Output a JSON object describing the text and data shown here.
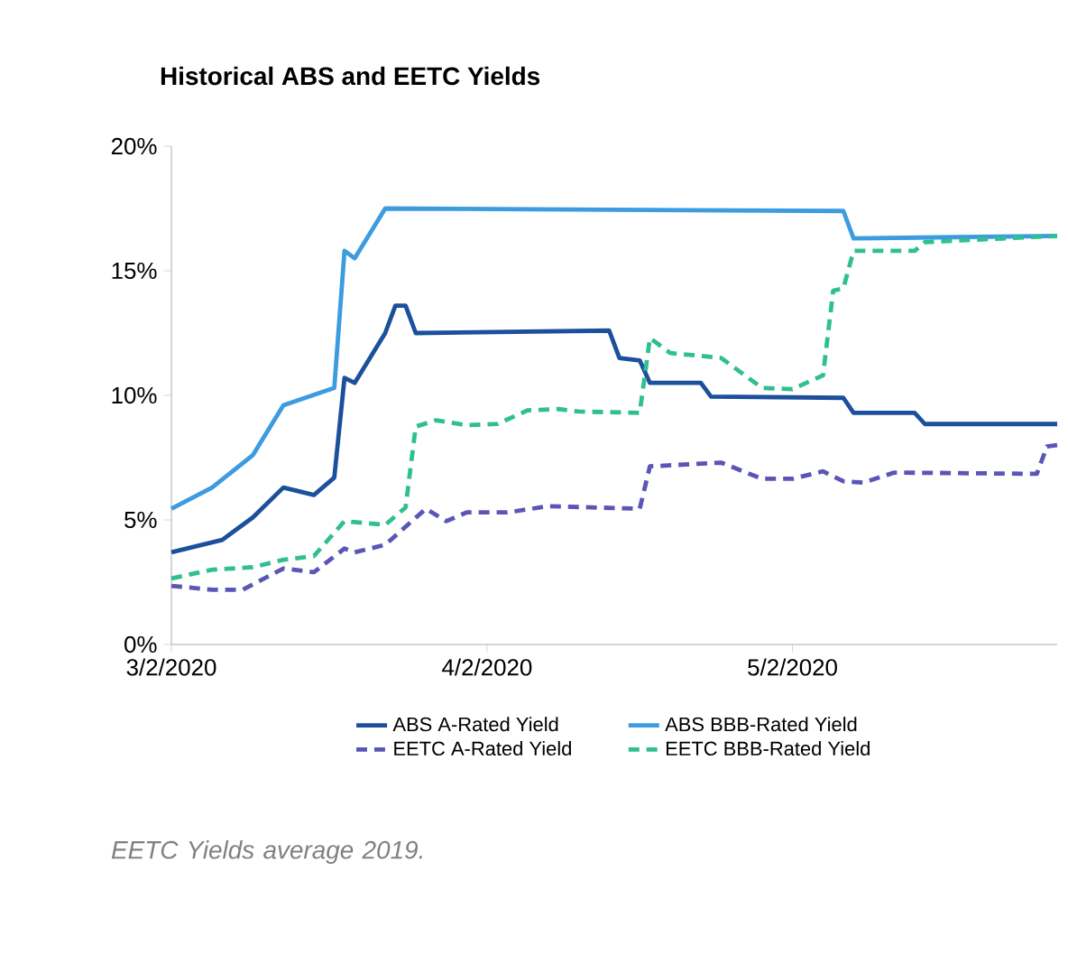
{
  "chart_data": {
    "type": "line",
    "title": "Historical ABS and EETC Yields",
    "xlim": [
      "2020-03-02",
      "2020-05-28"
    ],
    "xticks": [
      {
        "value": "2020-03-02",
        "label": "3/2/2020"
      },
      {
        "value": "2020-04-02",
        "label": "4/2/2020"
      },
      {
        "value": "2020-05-02",
        "label": "5/2/2020"
      }
    ],
    "ylim": [
      0,
      20
    ],
    "yticks": [
      {
        "value": 0,
        "label": "0%"
      },
      {
        "value": 5,
        "label": "5%"
      },
      {
        "value": 10,
        "label": "10%"
      },
      {
        "value": 15,
        "label": "15%"
      },
      {
        "value": 20,
        "label": "20%"
      }
    ],
    "legend": "bottom",
    "grid": false,
    "annotations": [
      "EETC Yields average 2019."
    ],
    "series": [
      {
        "name": "ABS A-Rated Yield",
        "color": "#1c4f9c",
        "line_style": "solid",
        "x": [
          "2020-03-02",
          "2020-03-07",
          "2020-03-10",
          "2020-03-13",
          "2020-03-16",
          "2020-03-18",
          "2020-03-19",
          "2020-03-20",
          "2020-03-23",
          "2020-03-24",
          "2020-03-25",
          "2020-03-26",
          "2020-04-14",
          "2020-04-15",
          "2020-04-17",
          "2020-04-18",
          "2020-04-23",
          "2020-04-24",
          "2020-05-07",
          "2020-05-08",
          "2020-05-14",
          "2020-05-15",
          "2020-05-28"
        ],
        "values": [
          3.7,
          4.2,
          5.1,
          6.3,
          6.0,
          6.7,
          10.7,
          10.5,
          12.5,
          13.6,
          13.6,
          12.5,
          12.6,
          11.5,
          11.4,
          10.5,
          10.5,
          9.95,
          9.9,
          9.3,
          9.3,
          8.85,
          8.85
        ]
      },
      {
        "name": "ABS BBB-Rated Yield",
        "color": "#3d9be0",
        "line_style": "solid",
        "x": [
          "2020-03-02",
          "2020-03-06",
          "2020-03-10",
          "2020-03-13",
          "2020-03-18",
          "2020-03-19",
          "2020-03-20",
          "2020-03-23",
          "2020-05-07",
          "2020-05-08",
          "2020-05-28"
        ],
        "values": [
          5.45,
          6.3,
          7.6,
          9.6,
          10.3,
          15.8,
          15.5,
          17.5,
          17.4,
          16.3,
          16.4
        ]
      },
      {
        "name": "EETC A-Rated Yield",
        "color": "#5b55b8",
        "line_style": "dashed",
        "x": [
          "2020-03-02",
          "2020-03-06",
          "2020-03-09",
          "2020-03-13",
          "2020-03-16",
          "2020-03-19",
          "2020-03-20",
          "2020-03-23",
          "2020-03-27",
          "2020-03-29",
          "2020-03-31",
          "2020-04-04",
          "2020-04-08",
          "2020-04-17",
          "2020-04-18",
          "2020-04-25",
          "2020-04-29",
          "2020-05-02",
          "2020-05-05",
          "2020-05-07",
          "2020-05-09",
          "2020-05-12",
          "2020-05-26",
          "2020-05-27",
          "2020-05-28"
        ],
        "values": [
          2.35,
          2.2,
          2.2,
          3.05,
          2.9,
          3.85,
          3.7,
          4.0,
          5.45,
          4.95,
          5.3,
          5.3,
          5.55,
          5.45,
          7.15,
          7.3,
          6.65,
          6.65,
          6.95,
          6.55,
          6.5,
          6.9,
          6.85,
          7.95,
          8.0
        ]
      },
      {
        "name": "EETC BBB-Rated Yield",
        "color": "#2fbf90",
        "line_style": "dashed",
        "x": [
          "2020-03-02",
          "2020-03-06",
          "2020-03-10",
          "2020-03-13",
          "2020-03-16",
          "2020-03-19",
          "2020-03-23",
          "2020-03-25",
          "2020-03-26",
          "2020-03-28",
          "2020-03-31",
          "2020-04-03",
          "2020-04-06",
          "2020-04-09",
          "2020-04-11",
          "2020-04-17",
          "2020-04-18",
          "2020-04-20",
          "2020-04-25",
          "2020-04-29",
          "2020-05-02",
          "2020-05-05",
          "2020-05-06",
          "2020-05-07",
          "2020-05-08",
          "2020-05-14",
          "2020-05-15",
          "2020-05-28"
        ],
        "values": [
          2.65,
          3.0,
          3.1,
          3.4,
          3.55,
          4.95,
          4.8,
          5.5,
          8.75,
          9.0,
          8.8,
          8.85,
          9.4,
          9.45,
          9.35,
          9.3,
          12.3,
          11.7,
          11.5,
          10.3,
          10.25,
          10.8,
          14.2,
          14.3,
          15.8,
          15.8,
          16.15,
          16.4
        ]
      }
    ]
  }
}
